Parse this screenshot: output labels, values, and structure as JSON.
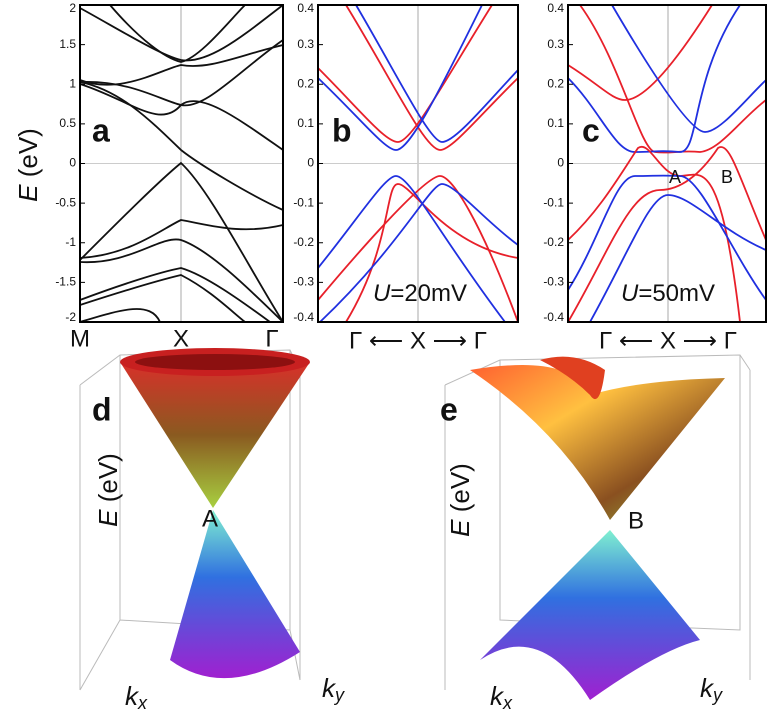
{
  "axis_label": {
    "var": "E",
    "unit": "(eV)"
  },
  "panels": [
    {
      "label": "a",
      "ylim": [
        -2,
        2
      ],
      "yticks": [
        2,
        1.5,
        1,
        0.5,
        0,
        -0.5,
        -1,
        -1.5,
        -2
      ],
      "xlabels": [
        "M",
        "X",
        "Γ"
      ]
    },
    {
      "label": "b",
      "ylim": [
        -0.4,
        0.4
      ],
      "yticks": [
        0.4,
        0.3,
        0.2,
        0.1,
        0,
        -0.1,
        -0.2,
        -0.3,
        -0.4
      ],
      "xlabel": "Γ ⟵ X ⟶ Γ",
      "annotation": {
        "var": "U",
        "text": "=20mV"
      }
    },
    {
      "label": "c",
      "ylim": [
        -0.4,
        0.4
      ],
      "yticks": [
        0.4,
        0.3,
        0.2,
        0.1,
        0,
        -0.1,
        -0.2,
        -0.3,
        -0.4
      ],
      "xlabel": "Γ ⟵ X ⟶ Γ",
      "annotation": {
        "var": "U",
        "text": "=50mV"
      },
      "points": [
        "A",
        "B"
      ]
    },
    {
      "label": "d",
      "point": "A"
    },
    {
      "label": "e",
      "point": "B"
    }
  ],
  "k_labels": [
    {
      "base": "k",
      "sub": "x"
    },
    {
      "base": "k",
      "sub": "y"
    }
  ]
}
